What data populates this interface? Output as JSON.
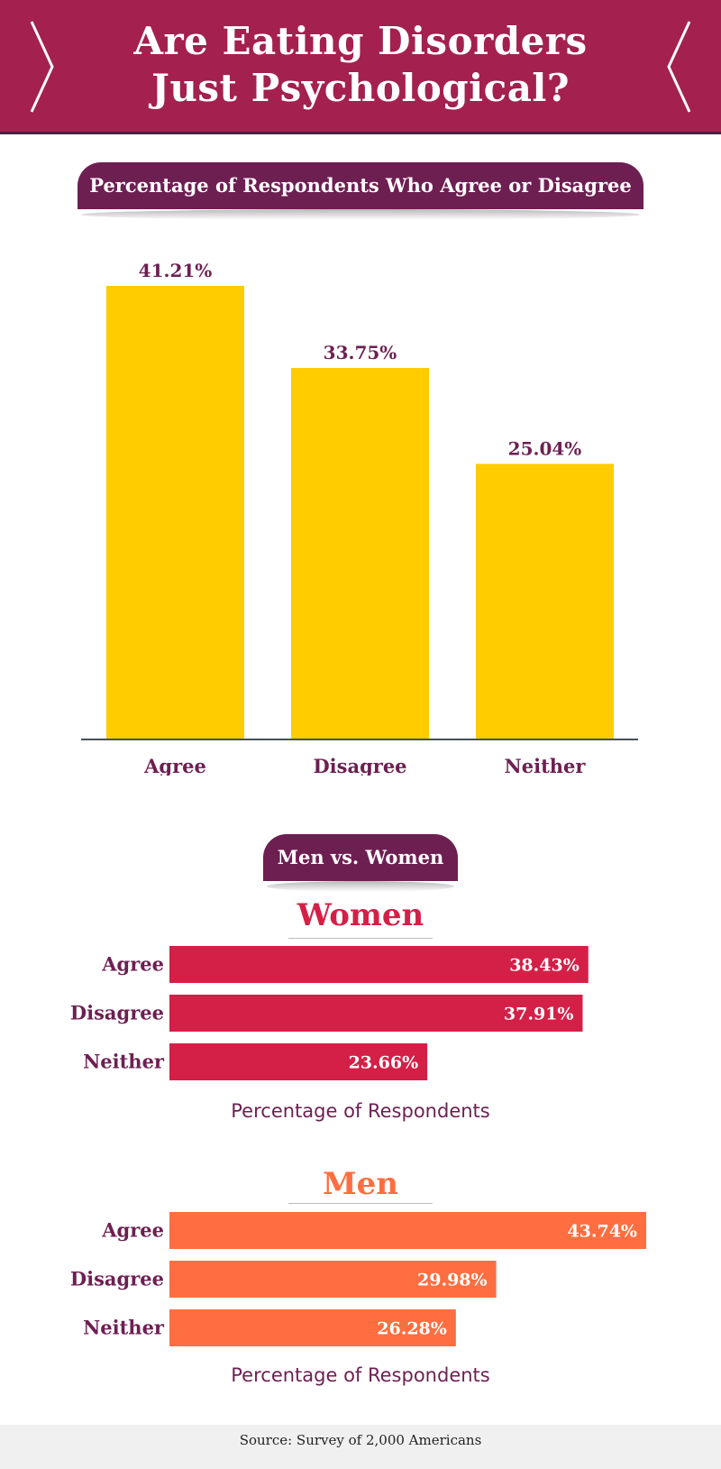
{
  "header": {
    "title": "Are Eating Disorders\nJust Psychological?",
    "background_color": "#a3204f"
  },
  "overall_section": {
    "title": "Percentage of Respondents Who Agree or Disagree"
  },
  "gender_section": {
    "title": "Men vs. Women",
    "women_label": "Women",
    "men_label": "Men",
    "axis_caption": "Percentage of Respondents"
  },
  "source": "Source: Survey of 2,000 Americans",
  "chart_data": [
    {
      "type": "bar",
      "orientation": "vertical",
      "title": "Percentage of Respondents Who Agree or Disagree",
      "categories": [
        "Agree",
        "Disagree",
        "Neither"
      ],
      "values": [
        41.21,
        33.75,
        25.04
      ],
      "value_labels": [
        "41.21%",
        "33.75%",
        "25.04%"
      ],
      "ylim": [
        0,
        41.21
      ],
      "grid": false,
      "color": "#ffcc00",
      "label_color": "#6d1f52"
    },
    {
      "type": "bar",
      "orientation": "horizontal",
      "title": "Women",
      "categories": [
        "Agree",
        "Disagree",
        "Neither"
      ],
      "values": [
        38.43,
        37.91,
        23.66
      ],
      "value_labels": [
        "38.43%",
        "37.91%",
        "23.66%"
      ],
      "xlabel": "Percentage of Respondents",
      "xlim": [
        0,
        43.74
      ],
      "grid": false,
      "color": "#d42047",
      "label_color": "#6d1f52"
    },
    {
      "type": "bar",
      "orientation": "horizontal",
      "title": "Men",
      "categories": [
        "Agree",
        "Disagree",
        "Neither"
      ],
      "values": [
        43.74,
        29.98,
        26.28
      ],
      "value_labels": [
        "43.74%",
        "29.98%",
        "26.28%"
      ],
      "xlabel": "Percentage of Respondents",
      "xlim": [
        0,
        43.74
      ],
      "grid": false,
      "color": "#ff6e40",
      "label_color": "#6d1f52"
    }
  ]
}
